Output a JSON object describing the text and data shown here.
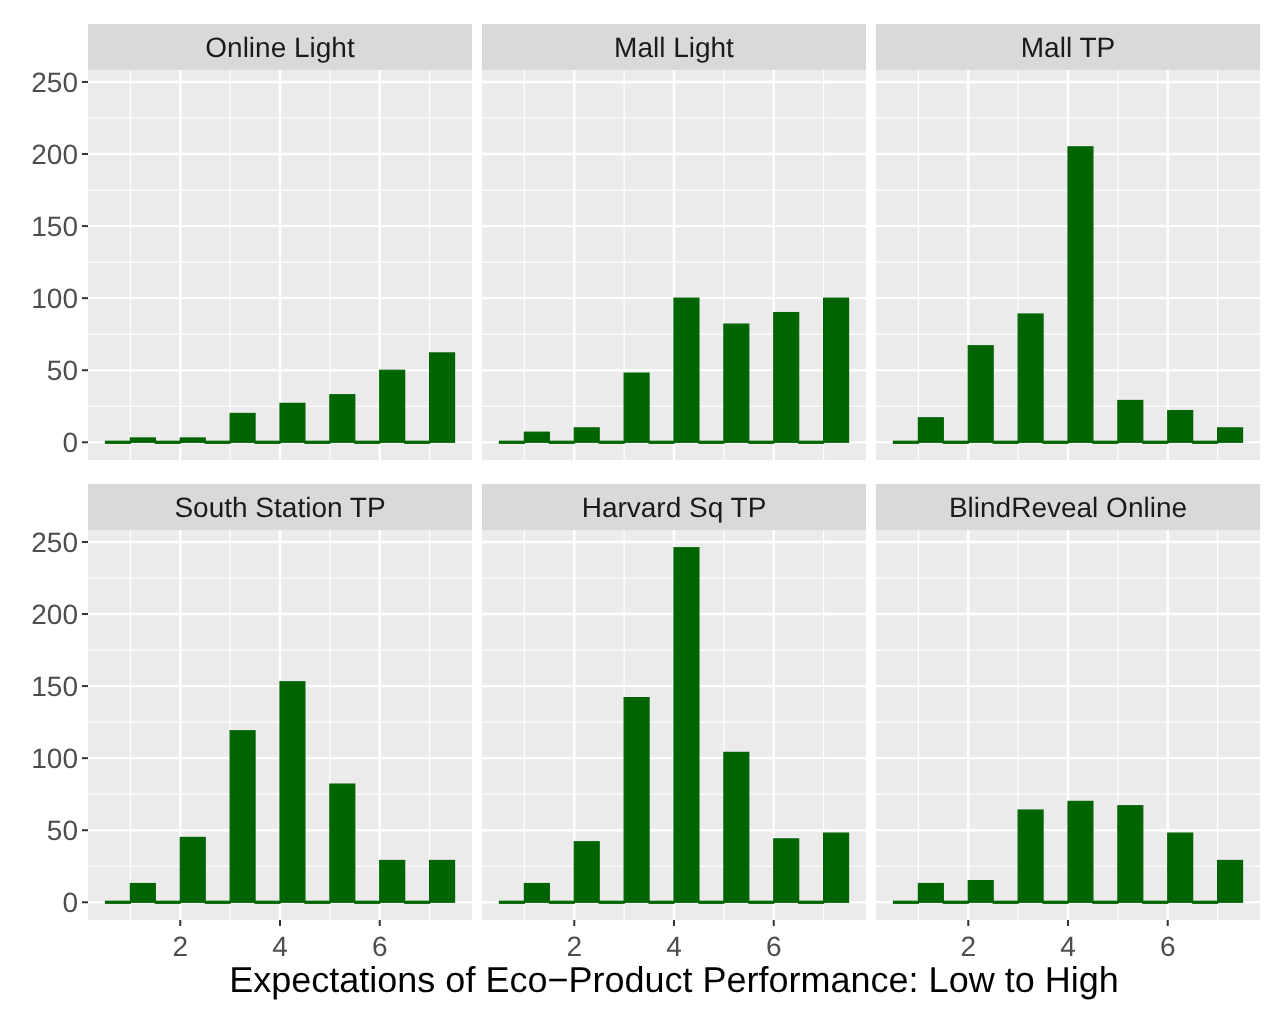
{
  "chart_data": [
    {
      "type": "histogram",
      "title": "Online Light",
      "bins": [
        0.5,
        1,
        1.5,
        2,
        2.5,
        3,
        3.5,
        4,
        4.5,
        5,
        5.5,
        6,
        6.5,
        7,
        7.5
      ],
      "values": [
        0,
        3,
        0,
        3,
        0,
        20,
        0,
        27,
        0,
        33,
        0,
        50,
        0,
        62
      ],
      "color": "#006400",
      "xlim": [
        0.15,
        7.85
      ],
      "xticks": [
        2,
        4,
        6
      ],
      "ylim": [
        -12.3,
        258.3
      ],
      "yticks": [
        0,
        50,
        100,
        150,
        200,
        250
      ],
      "grid": true,
      "tick_labels": "y"
    },
    {
      "type": "histogram",
      "title": "Mall Light",
      "bins": [
        0.5,
        1,
        1.5,
        2,
        2.5,
        3,
        3.5,
        4,
        4.5,
        5,
        5.5,
        6,
        6.5,
        7,
        7.5
      ],
      "values": [
        0,
        7,
        0,
        10,
        0,
        48,
        0,
        100,
        0,
        82,
        0,
        90,
        0,
        100
      ],
      "color": "#006400",
      "xlim": [
        0.15,
        7.85
      ],
      "xticks": [
        2,
        4,
        6
      ],
      "ylim": [
        -12.3,
        258.3
      ],
      "yticks": [
        0,
        50,
        100,
        150,
        200,
        250
      ],
      "grid": true,
      "tick_labels": false
    },
    {
      "type": "histogram",
      "title": "Mall TP",
      "bins": [
        0.5,
        1,
        1.5,
        2,
        2.5,
        3,
        3.5,
        4,
        4.5,
        5,
        5.5,
        6,
        6.5,
        7,
        7.5
      ],
      "values": [
        0,
        17,
        0,
        67,
        0,
        89,
        0,
        205,
        0,
        29,
        0,
        22,
        0,
        10
      ],
      "color": "#006400",
      "xlim": [
        0.15,
        7.85
      ],
      "xticks": [
        2,
        4,
        6
      ],
      "ylim": [
        -12.3,
        258.3
      ],
      "yticks": [
        0,
        50,
        100,
        150,
        200,
        250
      ],
      "grid": true,
      "tick_labels": false
    },
    {
      "type": "histogram",
      "title": "South Station TP",
      "bins": [
        0.5,
        1,
        1.5,
        2,
        2.5,
        3,
        3.5,
        4,
        4.5,
        5,
        5.5,
        6,
        6.5,
        7,
        7.5
      ],
      "values": [
        0,
        13,
        0,
        45,
        0,
        119,
        0,
        153,
        0,
        82,
        0,
        29,
        0,
        29
      ],
      "color": "#006400",
      "xlim": [
        0.15,
        7.85
      ],
      "xticks": [
        2,
        4,
        6
      ],
      "ylim": [
        -12.3,
        258.3
      ],
      "yticks": [
        0,
        50,
        100,
        150,
        200,
        250
      ],
      "grid": true
    },
    {
      "type": "histogram",
      "title": "Harvard Sq TP",
      "xlabel": "Expectations of Eco−Product Performance: Low to High",
      "bins": [
        0.5,
        1,
        1.5,
        2,
        2.5,
        3,
        3.5,
        4,
        4.5,
        5,
        5.5,
        6,
        6.5,
        7,
        7.5
      ],
      "values": [
        0,
        13,
        0,
        42,
        0,
        142,
        0,
        246,
        0,
        104,
        0,
        44,
        0,
        48
      ],
      "color": "#006400",
      "xlim": [
        0.15,
        7.85
      ],
      "xticks": [
        2,
        4,
        6
      ],
      "ylim": [
        -12.3,
        258.3
      ],
      "yticks": [
        0,
        50,
        100,
        150,
        200,
        250
      ],
      "grid": true,
      "tick_labels": "x"
    },
    {
      "type": "histogram",
      "title": "BlindReveal Online",
      "bins": [
        0.5,
        1,
        1.5,
        2,
        2.5,
        3,
        3.5,
        4,
        4.5,
        5,
        5.5,
        6,
        6.5,
        7,
        7.5
      ],
      "values": [
        0,
        13,
        0,
        15,
        0,
        64,
        0,
        70,
        0,
        67,
        0,
        48,
        0,
        29
      ],
      "color": "#006400",
      "xlim": [
        0.15,
        7.85
      ],
      "xticks": [
        2,
        4,
        6
      ],
      "ylim": [
        -12.3,
        258.3
      ],
      "yticks": [
        0,
        50,
        100,
        150,
        200,
        250
      ],
      "grid": true,
      "tick_labels": "x"
    }
  ]
}
